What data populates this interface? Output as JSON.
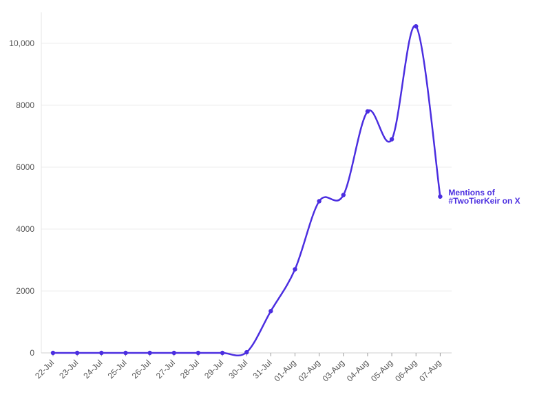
{
  "chart_data": {
    "type": "line",
    "title": "",
    "xlabel": "",
    "ylabel": "",
    "categories": [
      "22-Jul",
      "23-Jul",
      "24-Jul",
      "25-Jul",
      "26-Jul",
      "27-Jul",
      "28-Jul",
      "29-Jul",
      "30-Jul",
      "31-Jul",
      "01-Aug",
      "02-Aug",
      "03-Aug",
      "04-Aug",
      "05-Aug",
      "06-Aug",
      "07-Aug"
    ],
    "series": [
      {
        "name": "Mentions of #TwoTierKeir on X",
        "label_lines": [
          "Mentions of",
          "#TwoTierKeir on X"
        ],
        "color": "#4b2ee0",
        "values": [
          0,
          0,
          0,
          0,
          0,
          0,
          0,
          0,
          20,
          1350,
          2700,
          4900,
          5100,
          7800,
          6900,
          10550,
          5050
        ]
      }
    ],
    "ylim": [
      0,
      11000
    ],
    "yticks": [
      0,
      2000,
      4000,
      6000,
      8000,
      10000
    ],
    "ytick_labels": [
      "0",
      "2000",
      "4000",
      "6000",
      "8000",
      "10,000"
    ],
    "grid": true,
    "legend": "direct label at line end"
  }
}
